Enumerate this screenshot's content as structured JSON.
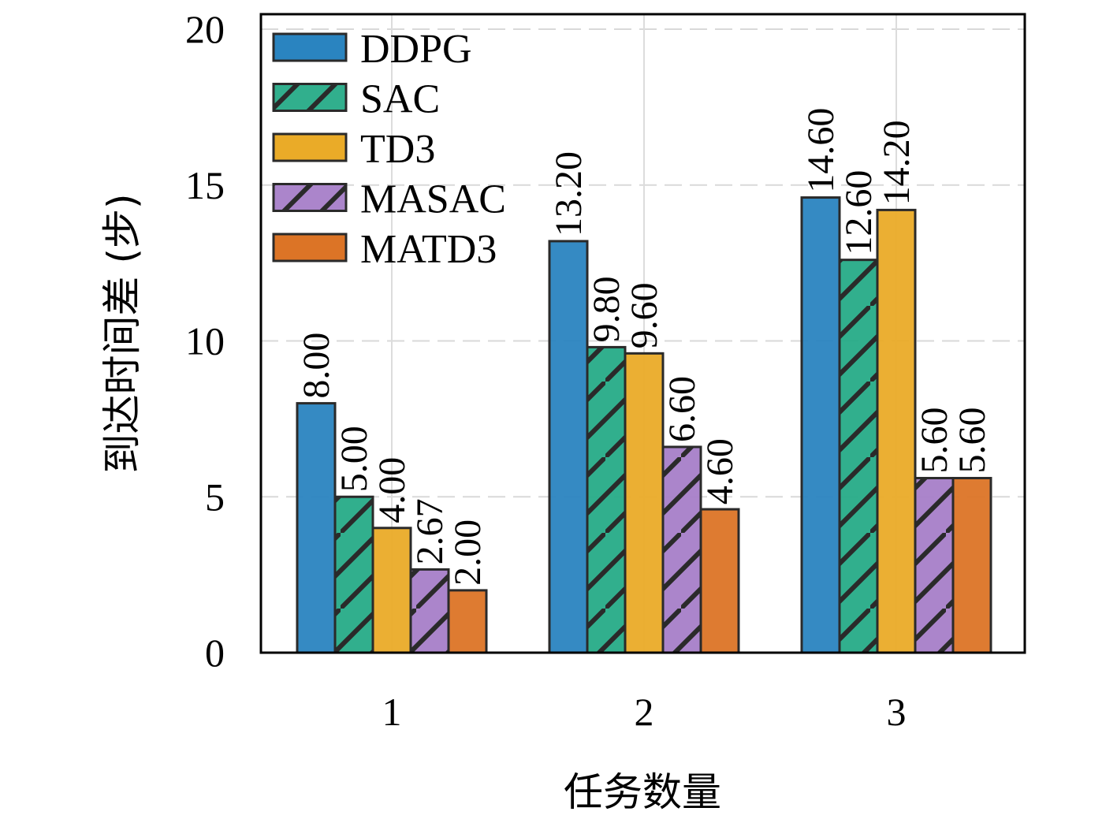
{
  "chart_data": {
    "type": "bar",
    "title": "",
    "xlabel": "任务数量",
    "ylabel": "到达时间差 (步)",
    "categories": [
      "1",
      "2",
      "3"
    ],
    "ylim": [
      0,
      20.5
    ],
    "yticks": [
      0,
      5,
      10,
      15,
      20
    ],
    "ytick_labels": [
      "0",
      "5",
      "10",
      "15",
      "20"
    ],
    "grid": true,
    "legend_position": "top-left",
    "series": [
      {
        "name": "DDPG",
        "values": [
          8.0,
          13.2,
          14.6
        ],
        "labels": [
          "8.00",
          "13.20",
          "14.60"
        ],
        "color": "#2a84c0",
        "hatch": ""
      },
      {
        "name": "SAC",
        "values": [
          5.0,
          9.8,
          12.6
        ],
        "labels": [
          "5.00",
          "9.80",
          "12.60"
        ],
        "color": "#26ab87",
        "hatch": "/"
      },
      {
        "name": "TD3",
        "values": [
          4.0,
          9.6,
          14.2
        ],
        "labels": [
          "4.00",
          "9.60",
          "14.20"
        ],
        "color": "#eaab28",
        "hatch": ""
      },
      {
        "name": "MASAC",
        "values": [
          2.67,
          6.6,
          5.6
        ],
        "labels": [
          "2.67",
          "6.60",
          "5.60"
        ],
        "color": "#a67ec8",
        "hatch": "/"
      },
      {
        "name": "MATD3",
        "values": [
          2.0,
          4.6,
          5.6
        ],
        "labels": [
          "2.00",
          "4.60",
          "5.60"
        ],
        "color": "#dc7426",
        "hatch": ""
      }
    ],
    "edge_color": "#2a2a2a"
  }
}
